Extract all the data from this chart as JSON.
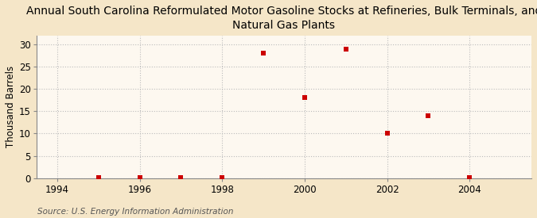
{
  "title": "Annual South Carolina Reformulated Motor Gasoline Stocks at Refineries, Bulk Terminals, and\nNatural Gas Plants",
  "ylabel": "Thousand Barrels",
  "source": "Source: U.S. Energy Information Administration",
  "outer_background": "#f5e6c8",
  "plot_background": "#fdf8f0",
  "x": [
    1995,
    1996,
    1997,
    1998,
    1999,
    2000,
    2001,
    2002,
    2003,
    2004
  ],
  "y": [
    0.07,
    0.07,
    0.07,
    0.07,
    28.0,
    18.0,
    29.0,
    10.0,
    14.0,
    0.07
  ],
  "marker_color": "#cc0000",
  "marker": "s",
  "marker_size": 4,
  "xlim": [
    1993.5,
    2005.5
  ],
  "ylim": [
    0,
    32
  ],
  "yticks": [
    0,
    5,
    10,
    15,
    20,
    25,
    30
  ],
  "xticks": [
    1994,
    1996,
    1998,
    2000,
    2002,
    2004
  ],
  "grid_color": "#bbbbbb",
  "grid_linestyle": ":",
  "title_fontsize": 10,
  "label_fontsize": 8.5,
  "tick_fontsize": 8.5,
  "source_fontsize": 7.5
}
